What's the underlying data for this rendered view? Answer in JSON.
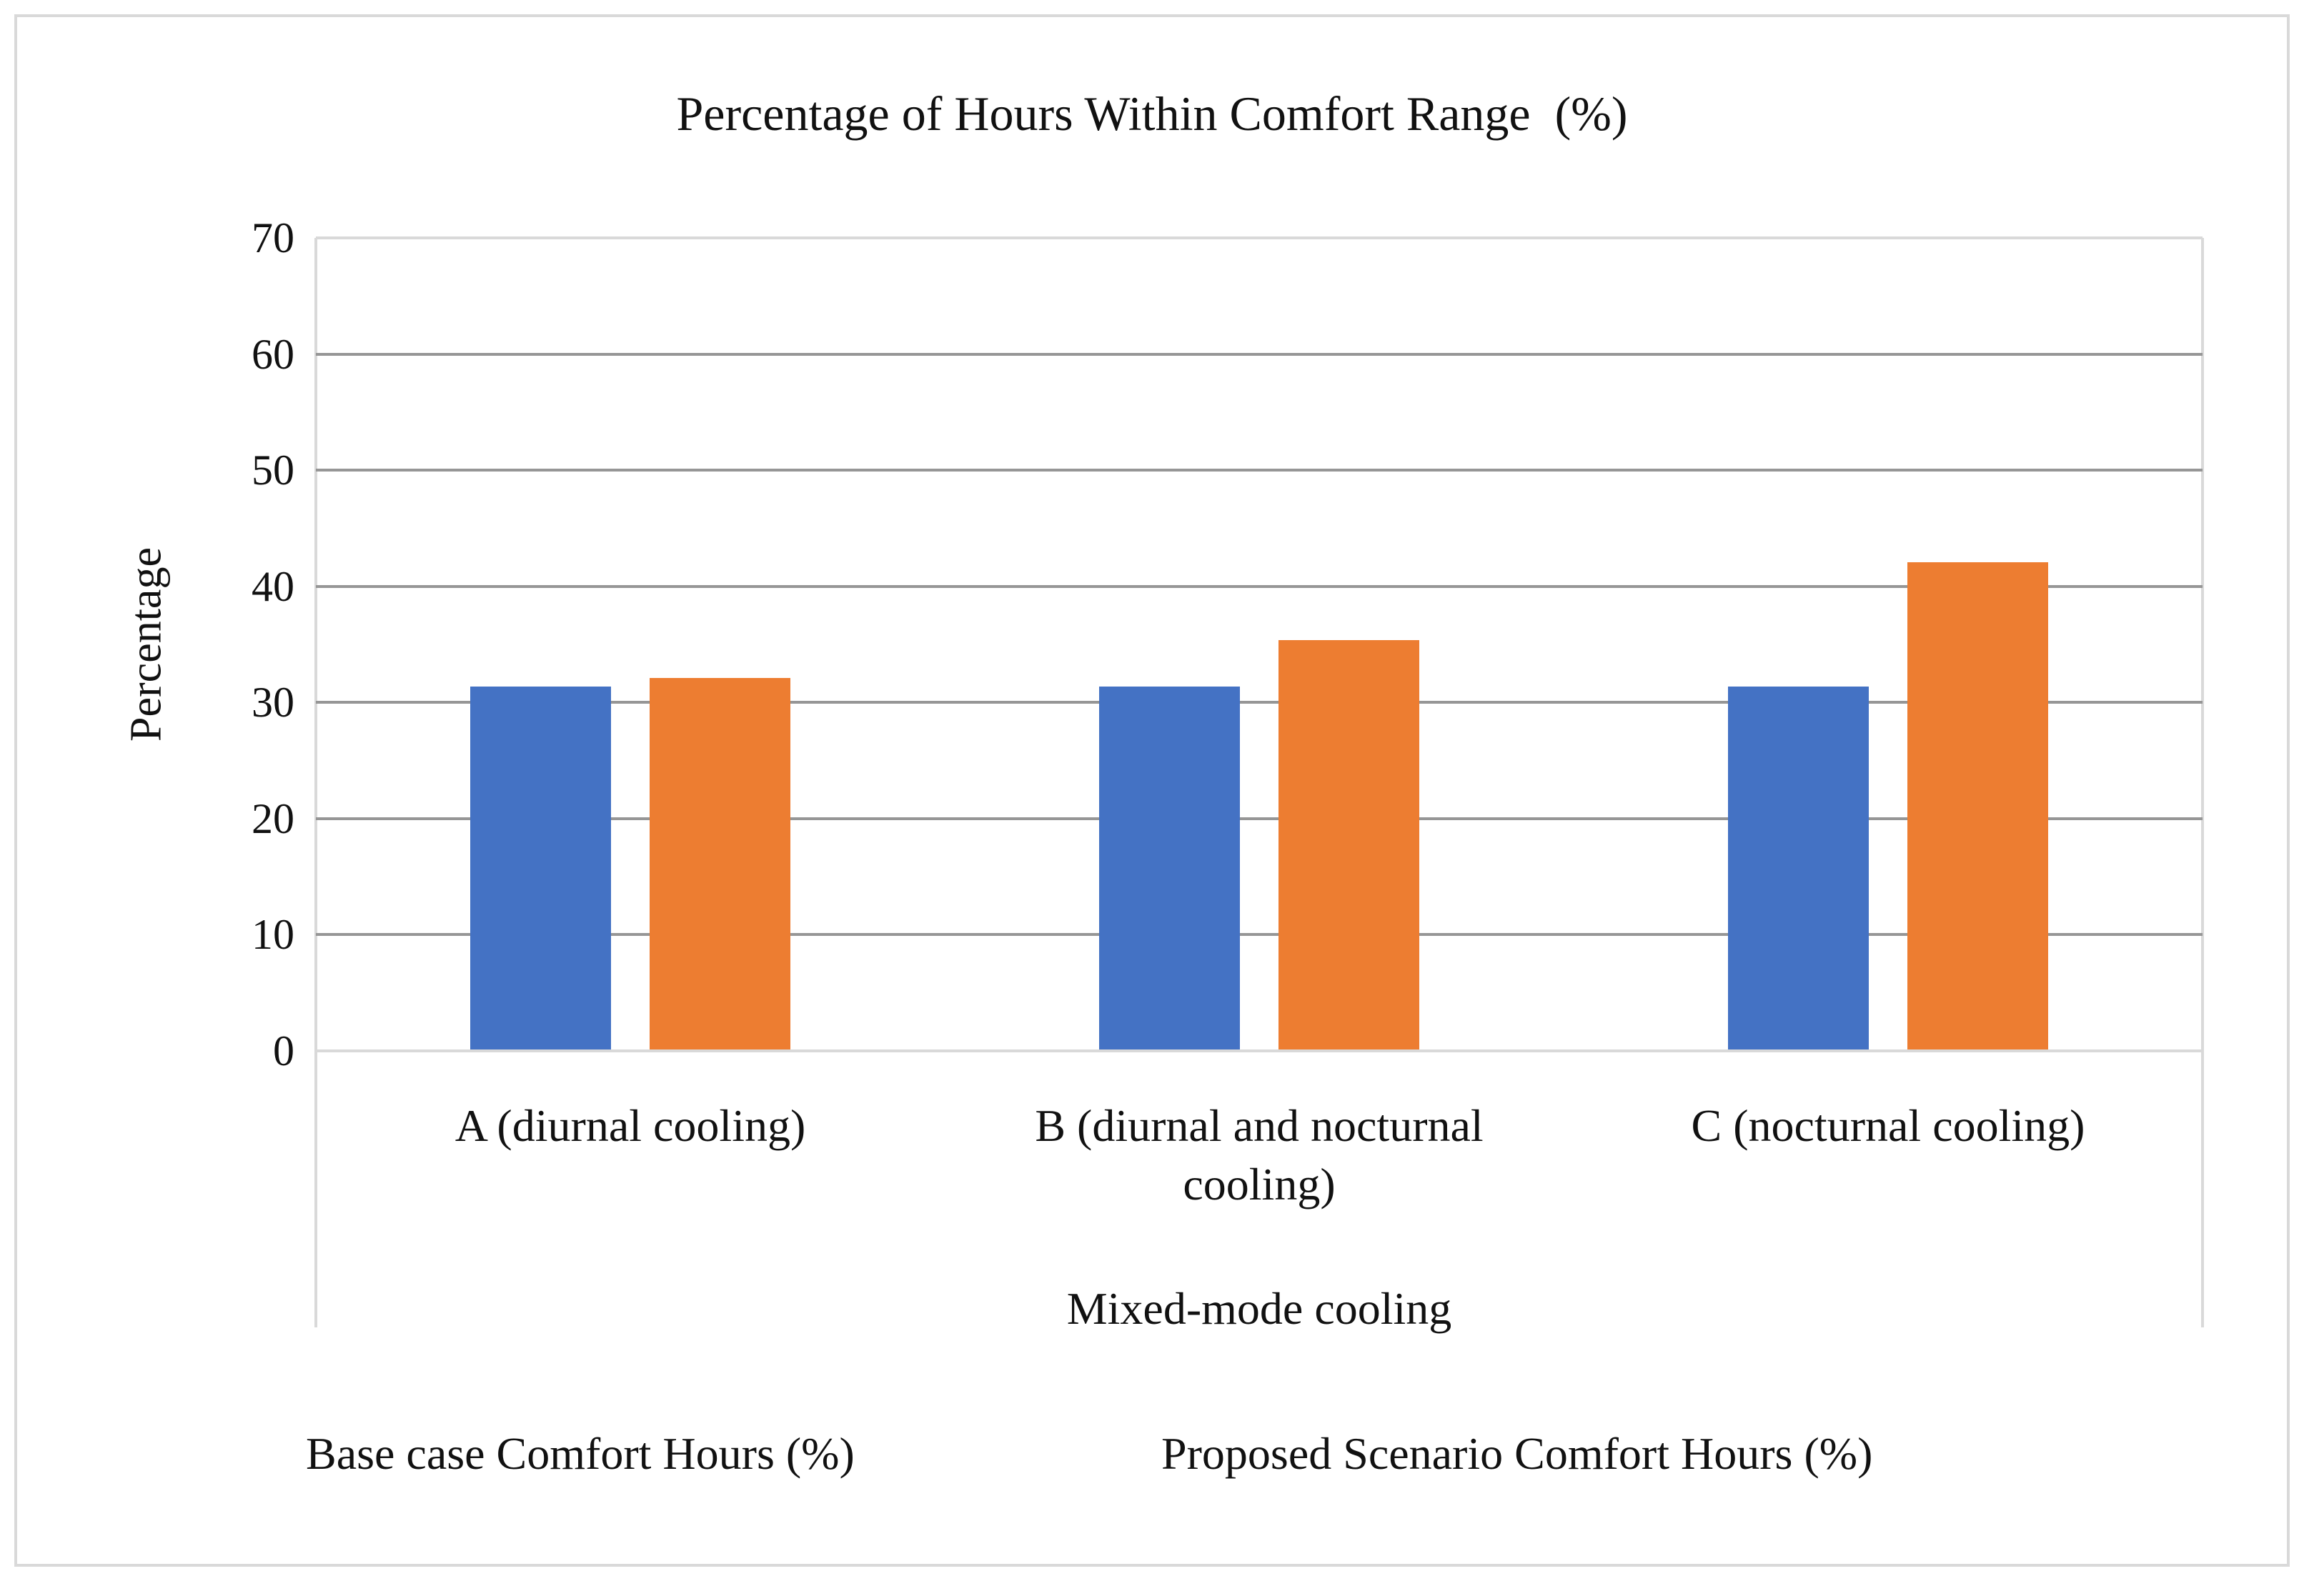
{
  "chart_data": {
    "type": "bar",
    "title": "Percentage of Hours Within Comfort Range  (%)",
    "xlabel": "Mixed-mode cooling",
    "ylabel": "Percentage",
    "categories": [
      "A (diurnal cooling)",
      "B (diurnal and nocturnal cooling)",
      "C (nocturnal cooling)"
    ],
    "series": [
      {
        "name": "Base case Comfort Hours (%)",
        "color": "#4472C4",
        "values": [
          31.4,
          31.4,
          31.4
        ]
      },
      {
        "name": "Proposed Scenario Comfort Hours (%)",
        "color": "#ED7D31",
        "values": [
          32.1,
          35.4,
          42.1
        ]
      }
    ],
    "ylim": [
      0,
      70
    ],
    "y_tick_step": 10,
    "y_ticks": [
      0,
      10,
      20,
      30,
      40,
      50,
      60,
      70
    ],
    "grid": true,
    "legend_position": "bottom",
    "colors": {
      "gridline": "#969696",
      "axis_border": "#D9D9D9",
      "text": "#1a1a1a",
      "background": "#FFFFFF",
      "series_base": "#4472C4",
      "series_proposed": "#ED7D31"
    }
  }
}
